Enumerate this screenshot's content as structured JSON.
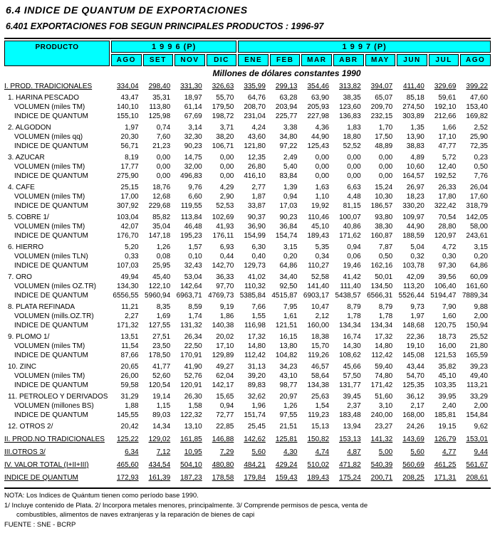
{
  "page": {
    "title": "6.4 INDICE DE QUANTUM DE EXPORTACIONES",
    "subtitle": "6.401  EXPORTACIONES FOB SEGUN PRINCIPALES PRODUCTOS : 1996-97",
    "units_note": "Millones de dólares constantes 1990"
  },
  "colors": {
    "header_bg": "#00FFFF",
    "text": "#000000"
  },
  "table": {
    "product_header": "PRODUCTO",
    "year_groups": [
      {
        "label": "1 9 9 6 (P)",
        "months": [
          "AGO",
          "SET",
          "NOV",
          "DIC"
        ]
      },
      {
        "label": "1 9 9 7 (P)",
        "months": [
          "ENE",
          "FEB",
          "MAR",
          "ABR",
          "MAY",
          "JUN",
          "JUL",
          "AGO"
        ]
      }
    ],
    "rows": [
      {
        "label": "I. PROD. TRADICIONALES",
        "style": "section",
        "values": [
          "334,04",
          "298,40",
          "331,30",
          "326,63",
          "335,99",
          "299,13",
          "354,46",
          "313,82",
          "394,07",
          "411,40",
          "329,69",
          "399,22"
        ]
      },
      {
        "label": "1. HARINA PESCADO",
        "style": "product",
        "values": [
          "43,47",
          "35,31",
          "18,97",
          "55,70",
          "64,76",
          "63,28",
          "63,90",
          "38,35",
          "65,07",
          "85,18",
          "59,61",
          "47,60"
        ]
      },
      {
        "label": "VOLUMEN (miles TM)",
        "style": "sub",
        "values": [
          "140,10",
          "113,80",
          "61,14",
          "179,50",
          "208,70",
          "203,94",
          "205,93",
          "123,60",
          "209,70",
          "274,50",
          "192,10",
          "153,40"
        ]
      },
      {
        "label": "INDICE DE QUANTUM",
        "style": "sub",
        "values": [
          "155,10",
          "125,98",
          "67,69",
          "198,72",
          "231,04",
          "225,77",
          "227,98",
          "136,83",
          "232,15",
          "303,89",
          "212,66",
          "169,82"
        ]
      },
      {
        "label": "2. ALGODON",
        "style": "product",
        "values": [
          "1,97",
          "0,74",
          "3,14",
          "3,71",
          "4,24",
          "3,38",
          "4,36",
          "1,83",
          "1,70",
          "1,35",
          "1,66",
          "2,52"
        ]
      },
      {
        "label": "VOLUMEN (miles qq)",
        "style": "sub",
        "values": [
          "20,30",
          "7,60",
          "32,30",
          "38,20",
          "43,60",
          "34,80",
          "44,90",
          "18,80",
          "17,50",
          "13,90",
          "17,10",
          "25,90"
        ]
      },
      {
        "label": "INDICE DE QUANTUM",
        "style": "sub",
        "values": [
          "56,71",
          "21,23",
          "90,23",
          "106,71",
          "121,80",
          "97,22",
          "125,43",
          "52,52",
          "48,89",
          "38,83",
          "47,77",
          "72,35"
        ]
      },
      {
        "label": "3. AZUCAR",
        "style": "product",
        "values": [
          "8,19",
          "0,00",
          "14,75",
          "0,00",
          "12,35",
          "2,49",
          "0,00",
          "0,00",
          "0,00",
          "4,89",
          "5,72",
          "0,23"
        ]
      },
      {
        "label": "VOLUMEN (miles TM)",
        "style": "sub",
        "values": [
          "17,77",
          "0,00",
          "32,00",
          "0,00",
          "26,80",
          "5,40",
          "0,00",
          "0,00",
          "0,00",
          "10,60",
          "12,40",
          "0,50"
        ]
      },
      {
        "label": "INDICE DE QUANTUM",
        "style": "sub",
        "values": [
          "275,90",
          "0,00",
          "496,83",
          "0,00",
          "416,10",
          "83,84",
          "0,00",
          "0,00",
          "0,00",
          "164,57",
          "192,52",
          "7,76"
        ]
      },
      {
        "label": "4. CAFE",
        "style": "product",
        "values": [
          "25,15",
          "18,76",
          "9,76",
          "4,29",
          "2,77",
          "1,39",
          "1,63",
          "6,63",
          "15,24",
          "26,97",
          "26,33",
          "26,04"
        ]
      },
      {
        "label": "VOLUMEN (miles TM)",
        "style": "sub",
        "values": [
          "17,00",
          "12,68",
          "6,60",
          "2,90",
          "1,87",
          "0,94",
          "1,10",
          "4,48",
          "10,30",
          "18,23",
          "17,80",
          "17,60"
        ]
      },
      {
        "label": "INDICE DE QUANTUM",
        "style": "sub",
        "values": [
          "307,92",
          "229,68",
          "119,55",
          "52,53",
          "33,87",
          "17,03",
          "19,92",
          "81,15",
          "186,57",
          "330,20",
          "322,42",
          "318,79"
        ]
      },
      {
        "label": "5. COBRE 1/",
        "style": "product",
        "values": [
          "103,04",
          "85,82",
          "113,84",
          "102,69",
          "90,37",
          "90,23",
          "110,46",
          "100,07",
          "93,80",
          "109,97",
          "70,54",
          "142,05"
        ]
      },
      {
        "label": "VOLUMEN (miles TM)",
        "style": "sub",
        "values": [
          "42,07",
          "35,04",
          "46,48",
          "41,93",
          "36,90",
          "36,84",
          "45,10",
          "40,86",
          "38,30",
          "44,90",
          "28,80",
          "58,00"
        ]
      },
      {
        "label": "INDICE DE QUANTUM",
        "style": "sub",
        "values": [
          "176,70",
          "147,18",
          "195,23",
          "176,11",
          "154,99",
          "154,74",
          "189,43",
          "171,62",
          "160,87",
          "188,59",
          "120,97",
          "243,61"
        ]
      },
      {
        "label": "6. HIERRO",
        "style": "product",
        "values": [
          "5,20",
          "1,26",
          "1,57",
          "6,93",
          "6,30",
          "3,15",
          "5,35",
          "0,94",
          "7,87",
          "5,04",
          "4,72",
          "3,15"
        ]
      },
      {
        "label": "VOLUMEN (miles TLN)",
        "style": "sub",
        "values": [
          "0,33",
          "0,08",
          "0,10",
          "0,44",
          "0,40",
          "0,20",
          "0,34",
          "0,06",
          "0,50",
          "0,32",
          "0,30",
          "0,20"
        ]
      },
      {
        "label": "INDICE DE QUANTUM",
        "style": "sub",
        "values": [
          "107,03",
          "25,95",
          "32,43",
          "142,70",
          "129,73",
          "64,86",
          "110,27",
          "19,46",
          "162,16",
          "103,78",
          "97,30",
          "64,86"
        ]
      },
      {
        "label": "7. ORO",
        "style": "product",
        "values": [
          "49,94",
          "45,40",
          "53,04",
          "36,33",
          "41,02",
          "34,40",
          "52,58",
          "41,42",
          "50,01",
          "42,09",
          "39,56",
          "60,09"
        ]
      },
      {
        "label": "VOLUMEN (miles OZ.TR)",
        "style": "sub",
        "values": [
          "134,30",
          "122,10",
          "142,64",
          "97,70",
          "110,32",
          "92,50",
          "141,40",
          "111,40",
          "134,50",
          "113,20",
          "106,40",
          "161,60"
        ]
      },
      {
        "label": "INDICE DE QUANTUM",
        "style": "sub",
        "values": [
          "6556,55",
          "5960,94",
          "6963,71",
          "4769,73",
          "5385,84",
          "4515,87",
          "6903,17",
          "5438,57",
          "6566,31",
          "5526,44",
          "5194,47",
          "7889,34"
        ]
      },
      {
        "label": "8. PLATA REFINADA",
        "style": "product",
        "values": [
          "11,21",
          "8,35",
          "8,59",
          "9,19",
          "7,66",
          "7,95",
          "10,47",
          "8,79",
          "8,79",
          "9,73",
          "7,90",
          "9,88"
        ]
      },
      {
        "label": "VOLUMEN (mills.OZ.TR)",
        "style": "sub",
        "values": [
          "2,27",
          "1,69",
          "1,74",
          "1,86",
          "1,55",
          "1,61",
          "2,12",
          "1,78",
          "1,78",
          "1,97",
          "1,60",
          "2,00"
        ]
      },
      {
        "label": "INDICE DE QUANTUM",
        "style": "sub",
        "values": [
          "171,32",
          "127,55",
          "131,32",
          "140,38",
          "116,98",
          "121,51",
          "160,00",
          "134,34",
          "134,34",
          "148,68",
          "120,75",
          "150,94"
        ]
      },
      {
        "label": "9. PLOMO 1/",
        "style": "product",
        "values": [
          "13,51",
          "27,51",
          "26,34",
          "20,02",
          "17,32",
          "16,15",
          "18,38",
          "16,74",
          "17,32",
          "22,36",
          "18,73",
          "25,52"
        ]
      },
      {
        "label": "VOLUMEN (miles TM)",
        "style": "sub",
        "values": [
          "11,54",
          "23,50",
          "22,50",
          "17,10",
          "14,80",
          "13,80",
          "15,70",
          "14,30",
          "14,80",
          "19,10",
          "16,00",
          "21,80"
        ]
      },
      {
        "label": "INDICE DE QUANTUM",
        "style": "sub",
        "values": [
          "87,66",
          "178,50",
          "170,91",
          "129,89",
          "112,42",
          "104,82",
          "119,26",
          "108,62",
          "112,42",
          "145,08",
          "121,53",
          "165,59"
        ]
      },
      {
        "label": "10. ZINC",
        "style": "product",
        "values": [
          "20,65",
          "41,77",
          "41,90",
          "49,27",
          "31,13",
          "34,23",
          "46,57",
          "45,66",
          "59,40",
          "43,44",
          "35,82",
          "39,23"
        ]
      },
      {
        "label": "VOLUMEN (miles TM)",
        "style": "sub",
        "values": [
          "26,00",
          "52,60",
          "52,76",
          "62,04",
          "39,20",
          "43,10",
          "58,64",
          "57,50",
          "74,80",
          "54,70",
          "45,10",
          "49,40"
        ]
      },
      {
        "label": "INDICE DE QUANTUM",
        "style": "sub",
        "values": [
          "59,58",
          "120,54",
          "120,91",
          "142,17",
          "89,83",
          "98,77",
          "134,38",
          "131,77",
          "171,42",
          "125,35",
          "103,35",
          "113,21"
        ]
      },
      {
        "label": "11. PETROLEO Y DERIVADOS",
        "style": "product",
        "values": [
          "31,29",
          "19,14",
          "26,30",
          "15,65",
          "32,62",
          "20,97",
          "25,63",
          "39,45",
          "51,60",
          "36,12",
          "39,95",
          "33,29"
        ]
      },
      {
        "label": "VOLUMEN (millones BS)",
        "style": "sub",
        "values": [
          "1,88",
          "1,15",
          "1,58",
          "0,94",
          "1,96",
          "1,26",
          "1,54",
          "2,37",
          "3,10",
          "2,17",
          "2,40",
          "2,00"
        ]
      },
      {
        "label": "INDICE DE QUANTUM",
        "style": "sub",
        "values": [
          "145,55",
          "89,03",
          "122,32",
          "72,77",
          "151,74",
          "97,55",
          "119,23",
          "183,48",
          "240,00",
          "168,00",
          "185,81",
          "154,84"
        ]
      },
      {
        "label": "12. OTROS  2/",
        "style": "product",
        "values": [
          "20,42",
          "14,34",
          "13,10",
          "22,85",
          "25,45",
          "21,51",
          "15,13",
          "13,94",
          "23,27",
          "24,26",
          "19,15",
          "9,62"
        ]
      },
      {
        "label": "II. PROD.NO TRADICIONALES",
        "style": "section",
        "values": [
          "125,22",
          "129,02",
          "161,85",
          "146,88",
          "142,62",
          "125,81",
          "150,82",
          "153,13",
          "141,32",
          "143,69",
          "126,79",
          "153,01"
        ]
      },
      {
        "label": "III.OTROS  3/",
        "style": "section",
        "values": [
          "6,34",
          "7,12",
          "10,95",
          "7,29",
          "5,60",
          "4,30",
          "4,74",
          "4,87",
          "5,00",
          "5,60",
          "4,77",
          "9,44"
        ]
      },
      {
        "label": "IV. VALOR TOTAL (I+II+III)",
        "style": "section",
        "values": [
          "465,60",
          "434,54",
          "504,10",
          "480,80",
          "484,21",
          "429,24",
          "510,02",
          "471,82",
          "540,39",
          "560,69",
          "461,25",
          "561,67"
        ]
      },
      {
        "label": "INDICE DE QUANTUM",
        "style": "section",
        "values": [
          "172,93",
          "161,39",
          "187,23",
          "178,58",
          "179,84",
          "159,43",
          "189,43",
          "175,24",
          "200,71",
          "208,25",
          "171,31",
          "208,61"
        ]
      }
    ]
  },
  "footer": {
    "note_base": "NOTA: Los Indices de Quántum tienen como período base 1990.",
    "note_refs": "1/  Incluye contenido de Plata.  2/ Incorpora metales menores, principalmente.  3/ Comprende permisos de pesca, venta de",
    "note_refs_cont": "combustibles, alimentos de naves extranjeras y la reparación de bienes de capi",
    "source": "FUENTE : SNE - BCRP"
  }
}
